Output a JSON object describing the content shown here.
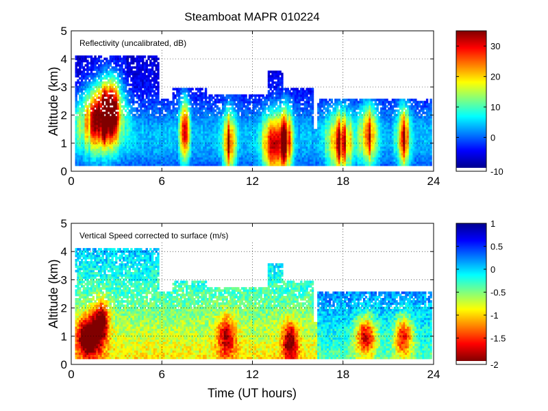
{
  "chart_data": [
    {
      "type": "heatmap",
      "title": "Steamboat MAPR 010224",
      "panel_label": "Reflectivity (uncalibrated, dB)",
      "xlabel": "",
      "ylabel": "Altitude (km)",
      "xlim": [
        0,
        24
      ],
      "ylim": [
        0,
        5
      ],
      "xticks": [
        0,
        6,
        12,
        18,
        24
      ],
      "yticks": [
        0,
        1,
        2,
        3,
        4,
        5
      ],
      "colorbar": {
        "min": -10,
        "max": 35,
        "ticks": [
          -10,
          0,
          10,
          20,
          30
        ],
        "colormap": "jet"
      },
      "data_extent": {
        "x": [
          0.3,
          24
        ],
        "y": [
          0.2,
          4.1
        ]
      }
    },
    {
      "type": "heatmap",
      "title": "",
      "panel_label": "Vertical Speed corrected to surface (m/s)",
      "xlabel": "Time (UT hours)",
      "ylabel": "Altitude (km)",
      "xlim": [
        0,
        24
      ],
      "ylim": [
        0,
        5
      ],
      "xticks": [
        0,
        6,
        12,
        18,
        24
      ],
      "yticks": [
        0,
        1,
        2,
        3,
        4,
        5
      ],
      "colorbar": {
        "min": -2,
        "max": 1,
        "ticks": [
          -2,
          -1.5,
          -1,
          -0.5,
          0,
          0.5,
          1
        ],
        "colormap": "jet_reversed"
      },
      "data_extent": {
        "x": [
          0.3,
          24
        ],
        "y": [
          0.2,
          4.1
        ]
      }
    }
  ]
}
